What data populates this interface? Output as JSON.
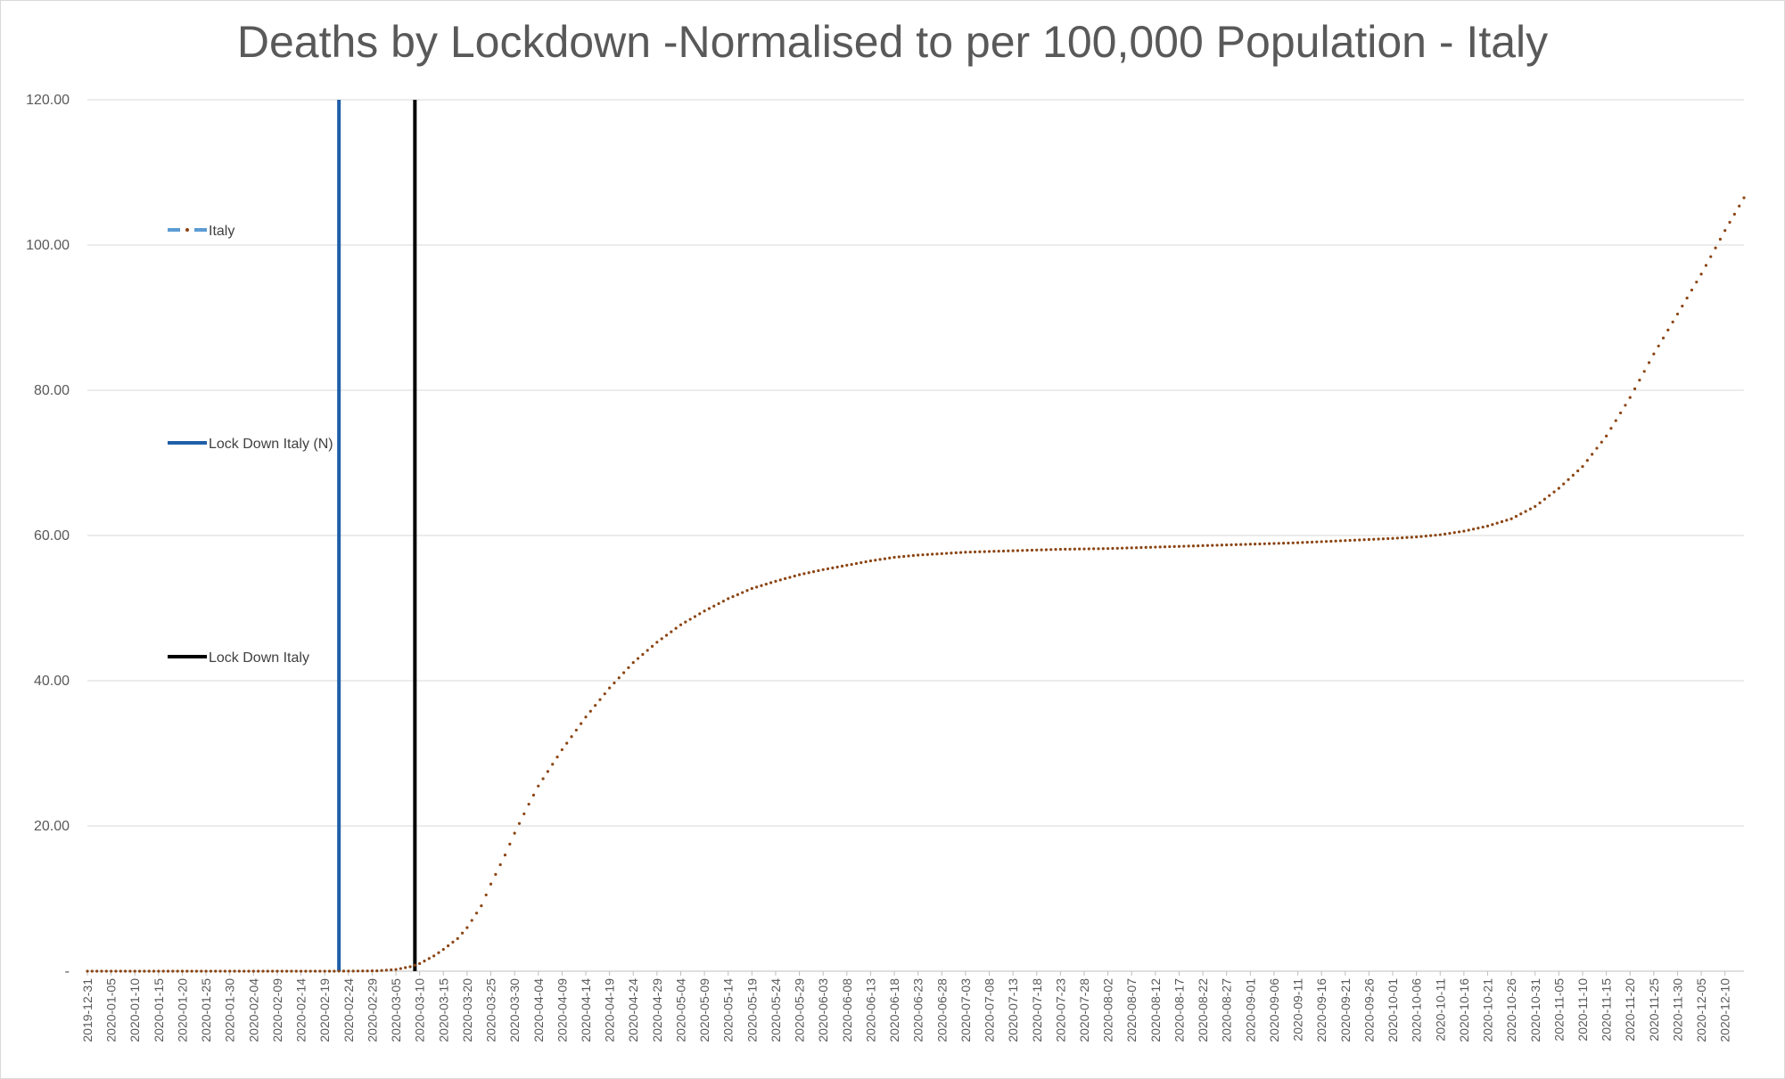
{
  "chart_data": {
    "type": "line",
    "title": "Deaths by Lockdown -Normalised to per 100,000 Population - Italy",
    "ylim": [
      0,
      120
    ],
    "yticks": [
      0,
      20,
      40,
      60,
      80,
      100,
      120
    ],
    "ytick_labels": [
      "-",
      "20.00",
      "40.00",
      "60.00",
      "80.00",
      "100.00",
      "120.00"
    ],
    "x_tick_labels": [
      "2019-12-31",
      "2020-01-05",
      "2020-01-10",
      "2020-01-15",
      "2020-01-20",
      "2020-01-25",
      "2020-01-30",
      "2020-02-04",
      "2020-02-09",
      "2020-02-14",
      "2020-02-19",
      "2020-02-24",
      "2020-02-29",
      "2020-03-05",
      "2020-03-10",
      "2020-03-15",
      "2020-03-20",
      "2020-03-25",
      "2020-03-30",
      "2020-04-04",
      "2020-04-09",
      "2020-04-14",
      "2020-04-19",
      "2020-04-24",
      "2020-04-29",
      "2020-05-04",
      "2020-05-09",
      "2020-05-14",
      "2020-05-19",
      "2020-05-24",
      "2020-05-29",
      "2020-06-03",
      "2020-06-08",
      "2020-06-13",
      "2020-06-18",
      "2020-06-23",
      "2020-06-28",
      "2020-07-03",
      "2020-07-08",
      "2020-07-13",
      "2020-07-18",
      "2020-07-23",
      "2020-07-28",
      "2020-08-02",
      "2020-08-07",
      "2020-08-12",
      "2020-08-17",
      "2020-08-22",
      "2020-08-27",
      "2020-09-01",
      "2020-09-06",
      "2020-09-11",
      "2020-09-16",
      "2020-09-21",
      "2020-09-26",
      "2020-10-01",
      "2020-10-06",
      "2020-10-11",
      "2020-10-16",
      "2020-10-21",
      "2020-10-26",
      "2020-10-31",
      "2020-11-05",
      "2020-11-10",
      "2020-11-15",
      "2020-11-20",
      "2020-11-25",
      "2020-11-30",
      "2020-12-05",
      "2020-12-10"
    ],
    "x_end": "2020-12-14",
    "grid": true,
    "legend_position": "left",
    "series": [
      {
        "name": "Italy",
        "style": "dotted",
        "color": "#8B4513",
        "legend_color": "#5B9BD5",
        "points": [
          [
            "2019-12-31",
            0
          ],
          [
            "2020-02-20",
            0
          ],
          [
            "2020-02-25",
            0.02
          ],
          [
            "2020-03-01",
            0.05
          ],
          [
            "2020-03-05",
            0.24
          ],
          [
            "2020-03-08",
            0.61
          ],
          [
            "2020-03-10",
            1.05
          ],
          [
            "2020-03-13",
            2.1
          ],
          [
            "2020-03-15",
            3.0
          ],
          [
            "2020-03-18",
            4.5
          ],
          [
            "2020-03-20",
            6.0
          ],
          [
            "2020-03-23",
            9.0
          ],
          [
            "2020-03-25",
            12.0
          ],
          [
            "2020-03-28",
            16.0
          ],
          [
            "2020-03-30",
            19.0
          ],
          [
            "2020-04-02",
            23.0
          ],
          [
            "2020-04-04",
            25.5
          ],
          [
            "2020-04-07",
            28.5
          ],
          [
            "2020-04-09",
            30.5
          ],
          [
            "2020-04-14",
            35.0
          ],
          [
            "2020-04-19",
            39.0
          ],
          [
            "2020-04-24",
            42.5
          ],
          [
            "2020-04-29",
            45.3
          ],
          [
            "2020-05-04",
            47.7
          ],
          [
            "2020-05-09",
            49.6
          ],
          [
            "2020-05-14",
            51.3
          ],
          [
            "2020-05-19",
            52.7
          ],
          [
            "2020-05-24",
            53.7
          ],
          [
            "2020-05-29",
            54.6
          ],
          [
            "2020-06-03",
            55.3
          ],
          [
            "2020-06-08",
            55.9
          ],
          [
            "2020-06-13",
            56.5
          ],
          [
            "2020-06-18",
            57.0
          ],
          [
            "2020-06-23",
            57.3
          ],
          [
            "2020-06-28",
            57.5
          ],
          [
            "2020-07-03",
            57.7
          ],
          [
            "2020-07-13",
            57.9
          ],
          [
            "2020-07-23",
            58.1
          ],
          [
            "2020-08-02",
            58.2
          ],
          [
            "2020-08-12",
            58.4
          ],
          [
            "2020-08-22",
            58.6
          ],
          [
            "2020-09-01",
            58.8
          ],
          [
            "2020-09-11",
            59.0
          ],
          [
            "2020-09-21",
            59.3
          ],
          [
            "2020-10-01",
            59.6
          ],
          [
            "2020-10-06",
            59.8
          ],
          [
            "2020-10-11",
            60.1
          ],
          [
            "2020-10-16",
            60.6
          ],
          [
            "2020-10-21",
            61.3
          ],
          [
            "2020-10-26",
            62.3
          ],
          [
            "2020-10-31",
            64.0
          ],
          [
            "2020-11-05",
            66.5
          ],
          [
            "2020-11-10",
            69.5
          ],
          [
            "2020-11-15",
            73.7
          ],
          [
            "2020-11-20",
            79.0
          ],
          [
            "2020-11-25",
            85.0
          ],
          [
            "2020-11-30",
            90.5
          ],
          [
            "2020-12-05",
            96.0
          ],
          [
            "2020-12-10",
            102.0
          ],
          [
            "2020-12-14",
            106.5
          ]
        ]
      },
      {
        "name": "Lock Down Italy (N)",
        "style": "vline",
        "color": "#1F5FA8",
        "x": "2020-02-22"
      },
      {
        "name": "Lock Down Italy",
        "style": "vline",
        "color": "#000000",
        "x": "2020-03-09"
      }
    ]
  }
}
